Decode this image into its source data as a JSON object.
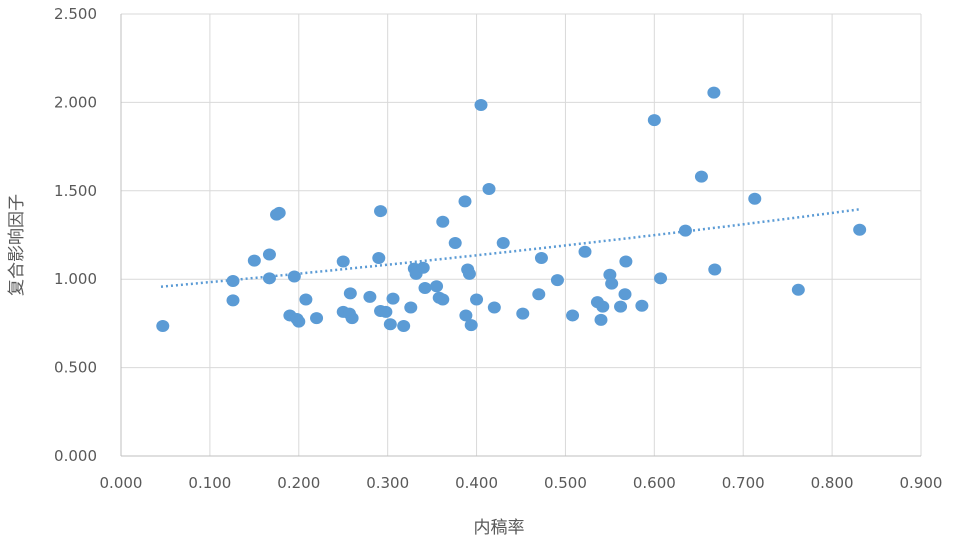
{
  "chart_data": {
    "type": "scatter",
    "title": "",
    "xlabel": "内稿率",
    "ylabel": "复合影响因子",
    "xlim": [
      0.0,
      0.9
    ],
    "ylim": [
      0.0,
      2.5
    ],
    "x_ticks": [
      "0.000",
      "0.100",
      "0.200",
      "0.300",
      "0.400",
      "0.500",
      "0.600",
      "0.700",
      "0.800",
      "0.900"
    ],
    "y_ticks": [
      "0.000",
      "0.500",
      "1.000",
      "1.500",
      "2.000",
      "2.500"
    ],
    "grid": true,
    "legend": "none",
    "marker_color": "#5b9bd5",
    "trendline": {
      "type": "exponential",
      "style": "dotted",
      "color": "#5b9bd5",
      "x_range": [
        0.045,
        0.83
      ],
      "a": 0.9373,
      "b": 0.4789
    },
    "points": [
      {
        "x": 0.047,
        "y": 0.735
      },
      {
        "x": 0.126,
        "y": 0.99
      },
      {
        "x": 0.126,
        "y": 0.88
      },
      {
        "x": 0.15,
        "y": 1.105
      },
      {
        "x": 0.167,
        "y": 1.14
      },
      {
        "x": 0.167,
        "y": 1.005
      },
      {
        "x": 0.175,
        "y": 1.365
      },
      {
        "x": 0.178,
        "y": 1.375
      },
      {
        "x": 0.19,
        "y": 0.795
      },
      {
        "x": 0.195,
        "y": 1.015
      },
      {
        "x": 0.198,
        "y": 0.775
      },
      {
        "x": 0.2,
        "y": 0.76
      },
      {
        "x": 0.208,
        "y": 0.885
      },
      {
        "x": 0.22,
        "y": 0.78
      },
      {
        "x": 0.25,
        "y": 1.1
      },
      {
        "x": 0.25,
        "y": 0.815
      },
      {
        "x": 0.257,
        "y": 0.805
      },
      {
        "x": 0.258,
        "y": 0.92
      },
      {
        "x": 0.26,
        "y": 0.78
      },
      {
        "x": 0.28,
        "y": 0.9
      },
      {
        "x": 0.29,
        "y": 1.12
      },
      {
        "x": 0.292,
        "y": 1.385
      },
      {
        "x": 0.292,
        "y": 0.82
      },
      {
        "x": 0.298,
        "y": 0.815
      },
      {
        "x": 0.303,
        "y": 0.745
      },
      {
        "x": 0.306,
        "y": 0.89
      },
      {
        "x": 0.318,
        "y": 0.735
      },
      {
        "x": 0.326,
        "y": 0.84
      },
      {
        "x": 0.33,
        "y": 1.06
      },
      {
        "x": 0.332,
        "y": 1.03
      },
      {
        "x": 0.34,
        "y": 1.065
      },
      {
        "x": 0.342,
        "y": 0.95
      },
      {
        "x": 0.355,
        "y": 0.96
      },
      {
        "x": 0.358,
        "y": 0.895
      },
      {
        "x": 0.362,
        "y": 1.325
      },
      {
        "x": 0.362,
        "y": 0.885
      },
      {
        "x": 0.376,
        "y": 1.205
      },
      {
        "x": 0.387,
        "y": 1.44
      },
      {
        "x": 0.388,
        "y": 0.795
      },
      {
        "x": 0.39,
        "y": 1.055
      },
      {
        "x": 0.392,
        "y": 1.03
      },
      {
        "x": 0.394,
        "y": 0.74
      },
      {
        "x": 0.4,
        "y": 0.885
      },
      {
        "x": 0.405,
        "y": 1.985
      },
      {
        "x": 0.414,
        "y": 1.51
      },
      {
        "x": 0.42,
        "y": 0.84
      },
      {
        "x": 0.43,
        "y": 1.205
      },
      {
        "x": 0.452,
        "y": 0.805
      },
      {
        "x": 0.47,
        "y": 0.915
      },
      {
        "x": 0.473,
        "y": 1.12
      },
      {
        "x": 0.491,
        "y": 0.995
      },
      {
        "x": 0.508,
        "y": 0.795
      },
      {
        "x": 0.522,
        "y": 1.155
      },
      {
        "x": 0.536,
        "y": 0.87
      },
      {
        "x": 0.54,
        "y": 0.77
      },
      {
        "x": 0.542,
        "y": 0.845
      },
      {
        "x": 0.55,
        "y": 1.025
      },
      {
        "x": 0.552,
        "y": 0.975
      },
      {
        "x": 0.562,
        "y": 0.845
      },
      {
        "x": 0.567,
        "y": 0.915
      },
      {
        "x": 0.568,
        "y": 1.1
      },
      {
        "x": 0.586,
        "y": 0.85
      },
      {
        "x": 0.6,
        "y": 1.9
      },
      {
        "x": 0.607,
        "y": 1.005
      },
      {
        "x": 0.635,
        "y": 1.275
      },
      {
        "x": 0.653,
        "y": 1.58
      },
      {
        "x": 0.667,
        "y": 2.055
      },
      {
        "x": 0.668,
        "y": 1.055
      },
      {
        "x": 0.713,
        "y": 1.455
      },
      {
        "x": 0.762,
        "y": 0.94
      },
      {
        "x": 0.831,
        "y": 1.28
      }
    ]
  }
}
